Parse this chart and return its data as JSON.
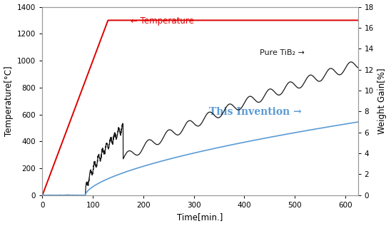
{
  "xlabel": "Time[min.]",
  "ylabel_left": "Temperature[°C]",
  "ylabel_right": "Weight Gain[%]",
  "xlim": [
    0,
    625
  ],
  "ylim_left": [
    0,
    1400
  ],
  "ylim_right": [
    0,
    18
  ],
  "yticks_left": [
    0,
    200,
    400,
    600,
    800,
    1000,
    1200,
    1400
  ],
  "yticks_right": [
    0,
    2,
    4,
    6,
    8,
    10,
    12,
    14,
    16,
    18
  ],
  "xticks": [
    0,
    100,
    200,
    300,
    400,
    500,
    600
  ],
  "temp_color": "#dd0000",
  "pure_tib2_color": "#1a1a1a",
  "invention_color": "#5b9bd5",
  "annotation_temp": "← Temperature",
  "annotation_tib2": "Pure TiB₂ →",
  "annotation_invention": "This Invention →",
  "bg_color": "#ffffff",
  "spine_color": "#999999"
}
